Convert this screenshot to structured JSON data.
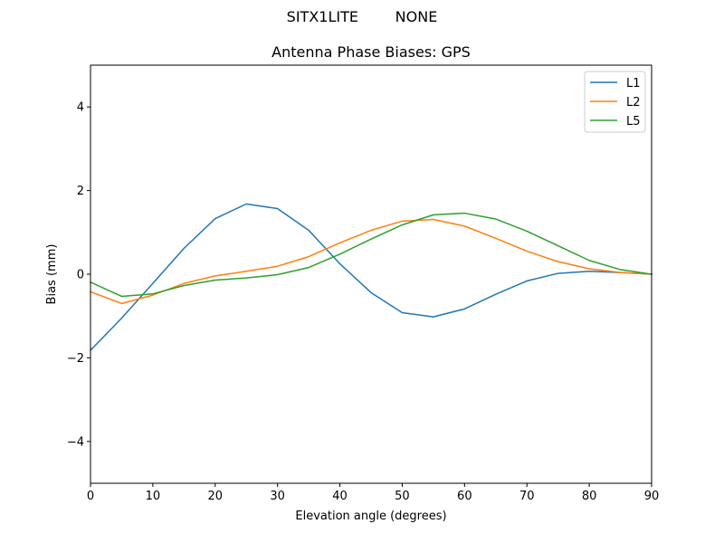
{
  "suptitle": "SITX1LITE        NONE",
  "chart_data": {
    "type": "line",
    "title": "Antenna Phase Biases: GPS",
    "xlabel": "Elevation angle (degrees)",
    "ylabel": "Bias (mm)",
    "xlim": [
      0,
      90
    ],
    "ylim": [
      -5,
      5
    ],
    "xticks": [
      0,
      10,
      20,
      30,
      40,
      50,
      60,
      70,
      80,
      90
    ],
    "yticks": [
      -4,
      -2,
      0,
      2,
      4
    ],
    "ytick_labels": [
      "−4",
      "−2",
      "0",
      "2",
      "4"
    ],
    "grid": false,
    "legend_position": "top-right",
    "x": [
      0,
      5,
      10,
      15,
      20,
      25,
      30,
      35,
      40,
      45,
      50,
      55,
      60,
      65,
      70,
      75,
      80,
      85,
      90
    ],
    "series": [
      {
        "name": "L1",
        "color": "#1f77b4",
        "values": [
          -1.82,
          -1.05,
          -0.22,
          0.62,
          1.33,
          1.68,
          1.57,
          1.05,
          0.25,
          -0.44,
          -0.92,
          -1.02,
          -0.83,
          -0.48,
          -0.16,
          0.02,
          0.07,
          0.04,
          0.0
        ]
      },
      {
        "name": "L2",
        "color": "#ff7f0e",
        "values": [
          -0.42,
          -0.7,
          -0.5,
          -0.22,
          -0.04,
          0.07,
          0.19,
          0.42,
          0.75,
          1.05,
          1.27,
          1.31,
          1.15,
          0.86,
          0.55,
          0.3,
          0.13,
          0.04,
          0.0
        ]
      },
      {
        "name": "L5",
        "color": "#2ca02c",
        "values": [
          -0.19,
          -0.53,
          -0.47,
          -0.27,
          -0.14,
          -0.09,
          -0.01,
          0.16,
          0.48,
          0.84,
          1.18,
          1.42,
          1.46,
          1.32,
          1.03,
          0.68,
          0.33,
          0.11,
          0.0
        ]
      }
    ]
  }
}
